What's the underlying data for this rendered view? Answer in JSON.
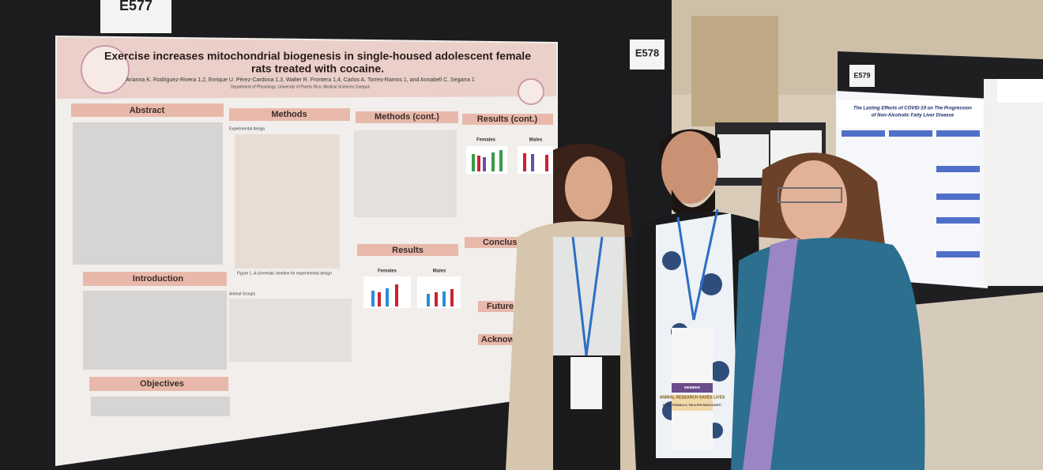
{
  "booths": [
    "E577",
    "E578",
    "E579"
  ],
  "poster": {
    "title_line1": "Exercise increases mitochondrial biogenesis in single-housed adolescent female",
    "title_line2": "rats treated with cocaine.",
    "authors": "Arianna K. Rodriguez-Rivera 1,2, Enrique U. Pérez-Cardona 1,3, Walter R. Frontera 1,4, Carlos A. Torres-Ramos 1, and Annabell C. Segarra 1",
    "affiliation": "Department of Physiology, University of Puerto Rico, Medical Sciences Campus",
    "sections": [
      "Abstract",
      "Methods",
      "Methods (cont.)",
      "Results (cont.)",
      "Introduction",
      "Results",
      "Conclusions",
      "Objectives",
      "Future",
      "Acknow"
    ],
    "experimental_design": "Experimental design",
    "figure1_caption": "Figure 1. A schematic timeline for experimental design",
    "animal_groups": "Animal Groups",
    "females": "Females",
    "males": "Males"
  },
  "side_poster": {
    "title_line1": "The Lasting Effects of COVID-19 on The Progression",
    "title_line2": "of Non-Alcoholic Fatty Liver Disease"
  },
  "badges": [
    "ANIMAL RESEARCH SAVES LIVES",
    "MEMBER",
    "FUNCTIONALLY, I'M A PHYSIOLOGIST!"
  ]
}
